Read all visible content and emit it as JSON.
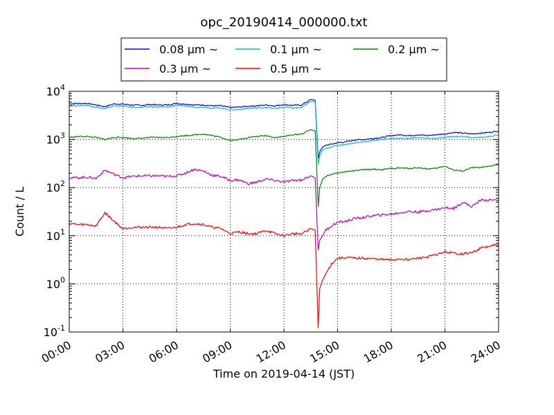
{
  "chart_data": {
    "type": "line",
    "title": "opc_20190414_000000.txt",
    "xlabel": "Time on 2019-04-14 (JST)",
    "ylabel": "Count / L",
    "y_scale": "log",
    "ylim": [
      0.1,
      10000
    ],
    "xlim": [
      "2019-04-14 00:00",
      "2019-04-15 00:00"
    ],
    "x_ticks": [
      "00:00",
      "03:00",
      "06:00",
      "09:00",
      "12:00",
      "15:00",
      "18:00",
      "21:00",
      "24:00"
    ],
    "y_ticks": [
      {
        "base": "10",
        "exp": "-1"
      },
      {
        "base": "10",
        "exp": "0"
      },
      {
        "base": "10",
        "exp": "1"
      },
      {
        "base": "10",
        "exp": "2"
      },
      {
        "base": "10",
        "exp": "3"
      },
      {
        "base": "10",
        "exp": "4"
      }
    ],
    "grid": true,
    "legend_position": "top",
    "x": [
      "00:00",
      "00:30",
      "01:00",
      "01:30",
      "02:00",
      "02:30",
      "03:00",
      "03:30",
      "04:00",
      "04:30",
      "05:00",
      "05:30",
      "06:00",
      "06:30",
      "07:00",
      "07:30",
      "08:00",
      "08:30",
      "09:00",
      "09:30",
      "10:00",
      "10:30",
      "11:00",
      "11:30",
      "12:00",
      "12:30",
      "13:00",
      "13:30",
      "13:45",
      "13:55",
      "14:00",
      "14:10",
      "14:20",
      "14:40",
      "15:00",
      "15:30",
      "16:00",
      "16:30",
      "17:00",
      "17:30",
      "18:00",
      "18:30",
      "19:00",
      "19:30",
      "20:00",
      "20:30",
      "21:00",
      "21:30",
      "22:00",
      "22:30",
      "23:00",
      "23:30",
      "24:00"
    ],
    "series": [
      {
        "name": "0.08 μm ~",
        "color": "#0000ff",
        "values": [
          5500,
          5600,
          5600,
          5200,
          4800,
          5500,
          5400,
          5200,
          5100,
          5300,
          5200,
          5200,
          5600,
          5400,
          5200,
          5200,
          5000,
          5000,
          4600,
          4700,
          4900,
          5000,
          5200,
          5000,
          5300,
          5100,
          5200,
          6800,
          6500,
          400,
          550,
          700,
          750,
          800,
          850,
          900,
          980,
          1000,
          1050,
          1100,
          1200,
          1250,
          1200,
          1250,
          1200,
          1250,
          1300,
          1400,
          1350,
          1300,
          1350,
          1400,
          1500
        ]
      },
      {
        "name": "0.1 μm ~",
        "color": "#00bfbf",
        "values": [
          5000,
          5100,
          5100,
          4700,
          4300,
          5000,
          4900,
          4700,
          4600,
          4800,
          4700,
          4700,
          5100,
          4900,
          4700,
          4700,
          4500,
          4500,
          4100,
          4200,
          4400,
          4500,
          4600,
          4400,
          4700,
          4500,
          4600,
          6200,
          6000,
          300,
          450,
          600,
          650,
          700,
          750,
          800,
          850,
          900,
          950,
          1000,
          1050,
          1050,
          1050,
          1100,
          1050,
          1050,
          1100,
          1150,
          1150,
          1100,
          1100,
          1150,
          1250
        ]
      },
      {
        "name": "0.2 μm ~",
        "color": "#008000",
        "values": [
          1100,
          1150,
          1150,
          1100,
          1000,
          1100,
          1100,
          1050,
          1050,
          1100,
          1100,
          1100,
          1150,
          1200,
          1250,
          1300,
          1200,
          1100,
          950,
          1000,
          1100,
          1150,
          1200,
          1100,
          1150,
          1250,
          1300,
          1600,
          1500,
          40,
          100,
          150,
          170,
          190,
          200,
          215,
          225,
          235,
          240,
          235,
          250,
          255,
          250,
          260,
          245,
          250,
          280,
          230,
          220,
          260,
          260,
          275,
          310
        ]
      },
      {
        "name": "0.3 μm ~",
        "color": "#bf00bf",
        "values": [
          160,
          160,
          165,
          155,
          230,
          190,
          160,
          170,
          175,
          175,
          175,
          170,
          175,
          200,
          240,
          220,
          180,
          170,
          140,
          145,
          120,
          130,
          150,
          140,
          130,
          140,
          145,
          175,
          160,
          5,
          8,
          10,
          13,
          16,
          19,
          20,
          23,
          24,
          26,
          27,
          28,
          30,
          32,
          31,
          33,
          35,
          38,
          37,
          50,
          40,
          55,
          55,
          55
        ]
      },
      {
        "name": "0.5 μm ~",
        "color": "#ff0000",
        "values": [
          18,
          17,
          17,
          16,
          30,
          20,
          14,
          15,
          15,
          15,
          15,
          14,
          15,
          17,
          18,
          17,
          15,
          14,
          11,
          12,
          11,
          11,
          13,
          11,
          10,
          11,
          11,
          14,
          13,
          0.12,
          0.8,
          1.2,
          1.6,
          2.6,
          3.4,
          3.5,
          3.4,
          3.4,
          3.3,
          3.2,
          3.1,
          3.3,
          3.2,
          3.4,
          3.6,
          4,
          4.6,
          4.3,
          4.2,
          4.4,
          5.5,
          6,
          6.5
        ]
      }
    ]
  }
}
